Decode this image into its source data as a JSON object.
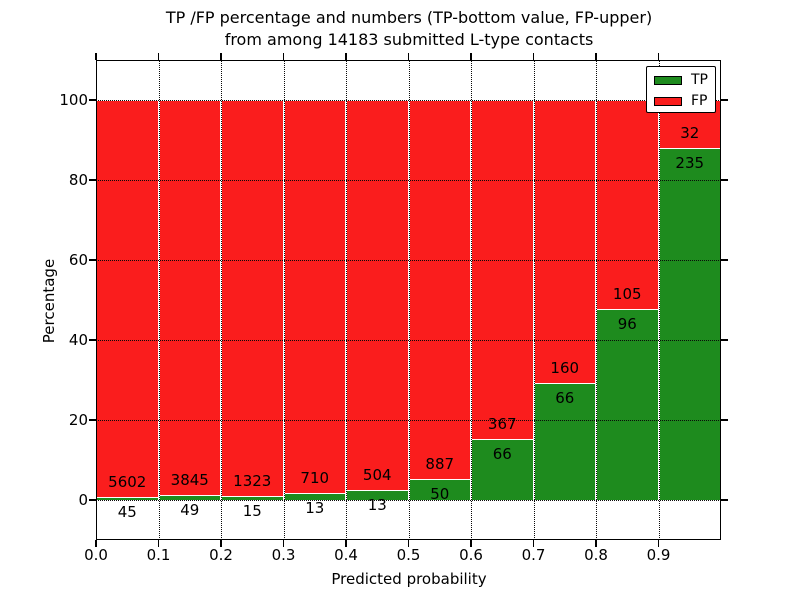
{
  "figure": {
    "title_line1": "TP /FP percentage and numbers (TP-bottom value, FP-upper)",
    "title_line2": "from among 14183 submitted L-type contacts"
  },
  "chart_data": {
    "type": "bar",
    "stacked": true,
    "normalized_to_percent": true,
    "total_contacts": 14183,
    "bin_width": 0.1,
    "bin_starts": [
      0.0,
      0.1,
      0.2,
      0.3,
      0.4,
      0.5,
      0.6,
      0.7,
      0.8,
      0.9
    ],
    "series": [
      {
        "name": "TP",
        "color": "#1e8b1e",
        "values": [
          45,
          49,
          15,
          13,
          13,
          50,
          66,
          66,
          96,
          235
        ]
      },
      {
        "name": "FP",
        "color": "#fa1d1d",
        "values": [
          5602,
          3845,
          1323,
          710,
          504,
          887,
          367,
          160,
          105,
          32
        ]
      }
    ],
    "bar_label_rule": "FP count printed above TP/FP boundary, TP count printed below boundary",
    "title": "TP /FP percentage and numbers (TP-bottom value, FP-upper) from among 14183 submitted L-type contacts",
    "xlabel": "Predicted probability",
    "ylabel": "Percentage",
    "xlim": [
      0.0,
      1.0
    ],
    "ylim": [
      -10,
      110
    ],
    "xtick_labels": [
      "0.0",
      "0.1",
      "0.2",
      "0.3",
      "0.4",
      "0.5",
      "0.6",
      "0.7",
      "0.8",
      "0.9"
    ],
    "ytick_values": [
      0,
      20,
      40,
      60,
      80,
      100
    ],
    "grid": {
      "style": "dotted",
      "color": "#000000",
      "drawn_above_bars": true
    },
    "legend": {
      "position": "upper right",
      "entries": [
        {
          "label": "TP",
          "color": "#1e8b1e"
        },
        {
          "label": "FP",
          "color": "#fa1d1d"
        }
      ]
    }
  },
  "colors": {
    "tp_green": "#1e8b1e",
    "fp_red": "#fa1d1d",
    "background": "#ffffff",
    "text": "#000000",
    "bar_edge": "#ffffff"
  }
}
